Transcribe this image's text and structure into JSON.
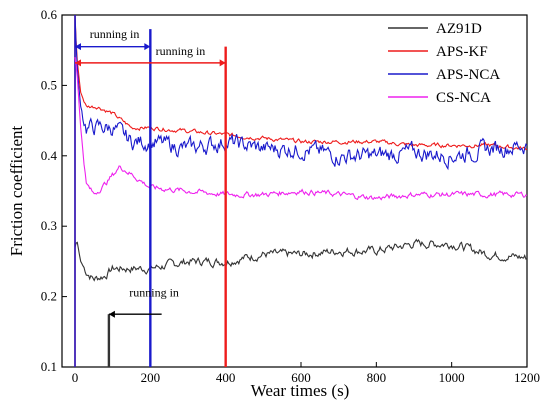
{
  "chart_data": {
    "type": "line",
    "xlabel": "Wear times  (s)",
    "ylabel": "Friction coefficient",
    "xlim": [
      0,
      1200
    ],
    "ylim": [
      0.1,
      0.6
    ],
    "x_ticks": [
      0,
      200,
      400,
      600,
      800,
      1000,
      1200
    ],
    "y_ticks": [
      0.1,
      0.2,
      0.3,
      0.4,
      0.5,
      0.6
    ],
    "grid": false,
    "legend": {
      "position": "top-right"
    },
    "series": [
      {
        "name": "AZ91D",
        "color": "#333333",
        "noise": 0.006,
        "points": [
          [
            0,
            0.27
          ],
          [
            5,
            0.28
          ],
          [
            15,
            0.25
          ],
          [
            30,
            0.235
          ],
          [
            50,
            0.225
          ],
          [
            80,
            0.23
          ],
          [
            100,
            0.24
          ],
          [
            200,
            0.24
          ],
          [
            300,
            0.25
          ],
          [
            400,
            0.25
          ],
          [
            500,
            0.26
          ],
          [
            600,
            0.26
          ],
          [
            700,
            0.265
          ],
          [
            800,
            0.265
          ],
          [
            900,
            0.275
          ],
          [
            1000,
            0.275
          ],
          [
            1100,
            0.26
          ],
          [
            1200,
            0.255
          ]
        ]
      },
      {
        "name": "APS-KF",
        "color": "#ee1c1c",
        "noise": 0.003,
        "points": [
          [
            0,
            0.6
          ],
          [
            5,
            0.54
          ],
          [
            15,
            0.49
          ],
          [
            30,
            0.47
          ],
          [
            60,
            0.47
          ],
          [
            100,
            0.46
          ],
          [
            150,
            0.44
          ],
          [
            200,
            0.44
          ],
          [
            300,
            0.435
          ],
          [
            400,
            0.43
          ],
          [
            500,
            0.425
          ],
          [
            600,
            0.42
          ],
          [
            700,
            0.42
          ],
          [
            800,
            0.42
          ],
          [
            900,
            0.415
          ],
          [
            1000,
            0.415
          ],
          [
            1100,
            0.415
          ],
          [
            1200,
            0.41
          ]
        ]
      },
      {
        "name": "APS-NCA",
        "color": "#1a1acc",
        "noise": 0.012,
        "points": [
          [
            0,
            0.6
          ],
          [
            5,
            0.53
          ],
          [
            15,
            0.47
          ],
          [
            30,
            0.44
          ],
          [
            60,
            0.44
          ],
          [
            100,
            0.44
          ],
          [
            150,
            0.42
          ],
          [
            200,
            0.42
          ],
          [
            300,
            0.41
          ],
          [
            400,
            0.42
          ],
          [
            500,
            0.41
          ],
          [
            600,
            0.41
          ],
          [
            700,
            0.4
          ],
          [
            800,
            0.4
          ],
          [
            900,
            0.405
          ],
          [
            1000,
            0.4
          ],
          [
            1100,
            0.41
          ],
          [
            1200,
            0.415
          ]
        ]
      },
      {
        "name": "CS-NCA",
        "color": "#ee22ee",
        "noise": 0.004,
        "points": [
          [
            0,
            0.54
          ],
          [
            5,
            0.52
          ],
          [
            15,
            0.44
          ],
          [
            30,
            0.36
          ],
          [
            50,
            0.345
          ],
          [
            80,
            0.36
          ],
          [
            120,
            0.385
          ],
          [
            160,
            0.37
          ],
          [
            200,
            0.355
          ],
          [
            300,
            0.35
          ],
          [
            400,
            0.345
          ],
          [
            500,
            0.345
          ],
          [
            600,
            0.35
          ],
          [
            700,
            0.345
          ],
          [
            800,
            0.34
          ],
          [
            900,
            0.345
          ],
          [
            1000,
            0.345
          ],
          [
            1100,
            0.345
          ],
          [
            1200,
            0.345
          ]
        ]
      }
    ],
    "vertical_markers": [
      {
        "x": 90,
        "y_top": 0.175,
        "color": "#333333"
      },
      {
        "x": 200,
        "y_top": 0.58,
        "color": "#1a1acc"
      },
      {
        "x": 400,
        "y_top": 0.555,
        "color": "#ee1c1c"
      }
    ],
    "annotations": [
      {
        "text": "running in",
        "color": "#1a1acc",
        "arrow": {
          "x1": 0,
          "x2": 200,
          "y": 0.555,
          "heads": "both"
        },
        "label_pos": [
          105,
          0.567
        ]
      },
      {
        "text": "running in",
        "color": "#ee1c1c",
        "arrow": {
          "x1": 0,
          "x2": 400,
          "y": 0.532,
          "heads": "both"
        },
        "label_pos": [
          280,
          0.543
        ]
      },
      {
        "text": "running in",
        "color": "#000000",
        "arrow": {
          "x1": 230,
          "x2": 90,
          "y": 0.175,
          "heads": "end"
        },
        "label_pos": [
          210,
          0.2
        ]
      }
    ]
  }
}
